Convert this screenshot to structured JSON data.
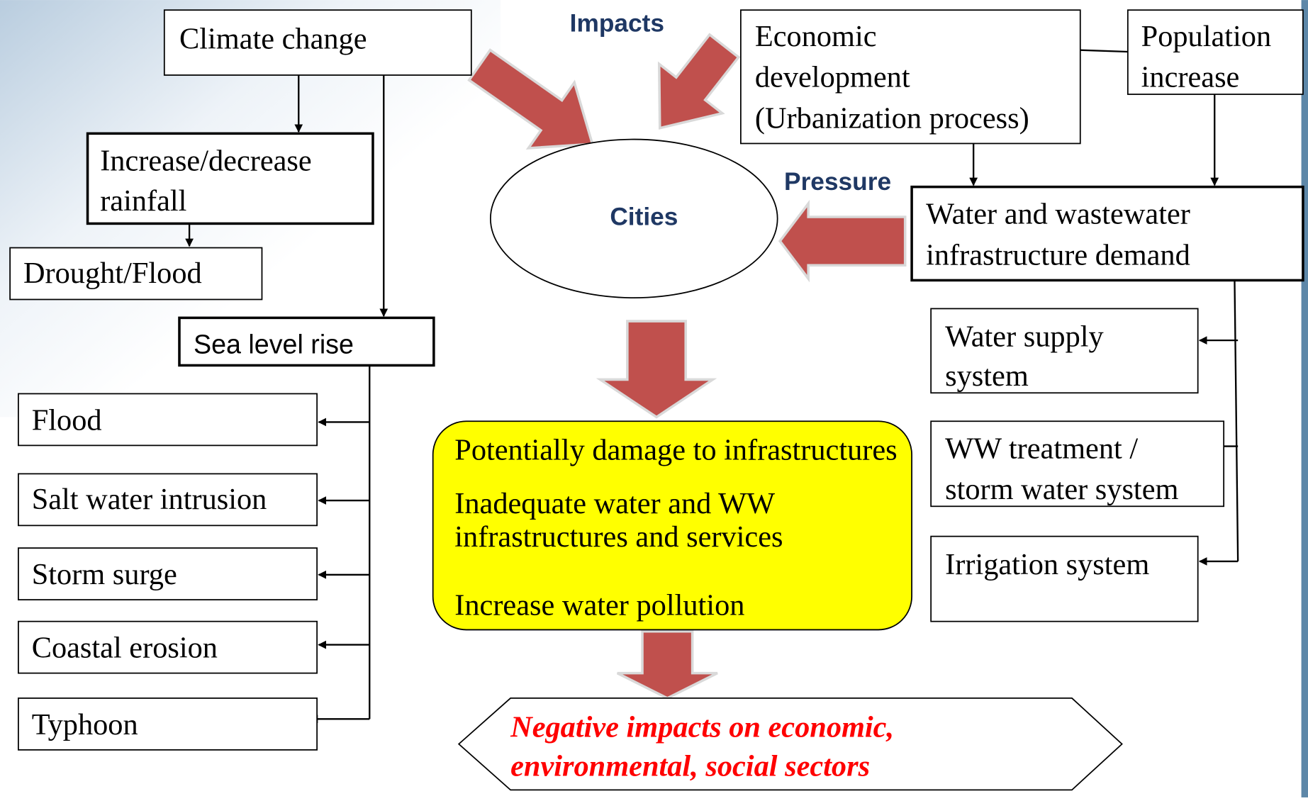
{
  "labels": {
    "impacts": "Impacts",
    "pressure": "Pressure",
    "cities": "Cities"
  },
  "nodes": [
    {
      "lines": [
        "Climate change"
      ]
    },
    {
      "lines": [
        "Increase/decrease",
        "rainfall"
      ]
    },
    {
      "lines": [
        "Drought/Flood"
      ]
    },
    {
      "lines": [
        "Sea level rise"
      ]
    },
    {
      "lines": [
        "Flood"
      ]
    },
    {
      "lines": [
        "Salt water intrusion"
      ]
    },
    {
      "lines": [
        "Storm surge"
      ]
    },
    {
      "lines": [
        "Coastal erosion"
      ]
    },
    {
      "lines": [
        "Typhoon"
      ]
    },
    {
      "lines": [
        "Economic",
        "development",
        "(Urbanization process)"
      ]
    },
    {
      "lines": [
        "Population",
        "increase"
      ]
    },
    {
      "lines": [
        "Water and wastewater",
        "infrastructure demand"
      ]
    },
    {
      "lines": [
        "Water supply",
        "system"
      ]
    },
    {
      "lines": [
        "WW treatment /",
        "storm water system"
      ]
    },
    {
      "lines": [
        "Irrigation system"
      ]
    }
  ],
  "effects": [
    "Potentially damage to infrastructures",
    "Inadequate water and WW",
    "infrastructures and services",
    "Increase water pollution"
  ],
  "outcome": [
    "Negative impacts on economic,",
    "environmental,  social sectors"
  ]
}
